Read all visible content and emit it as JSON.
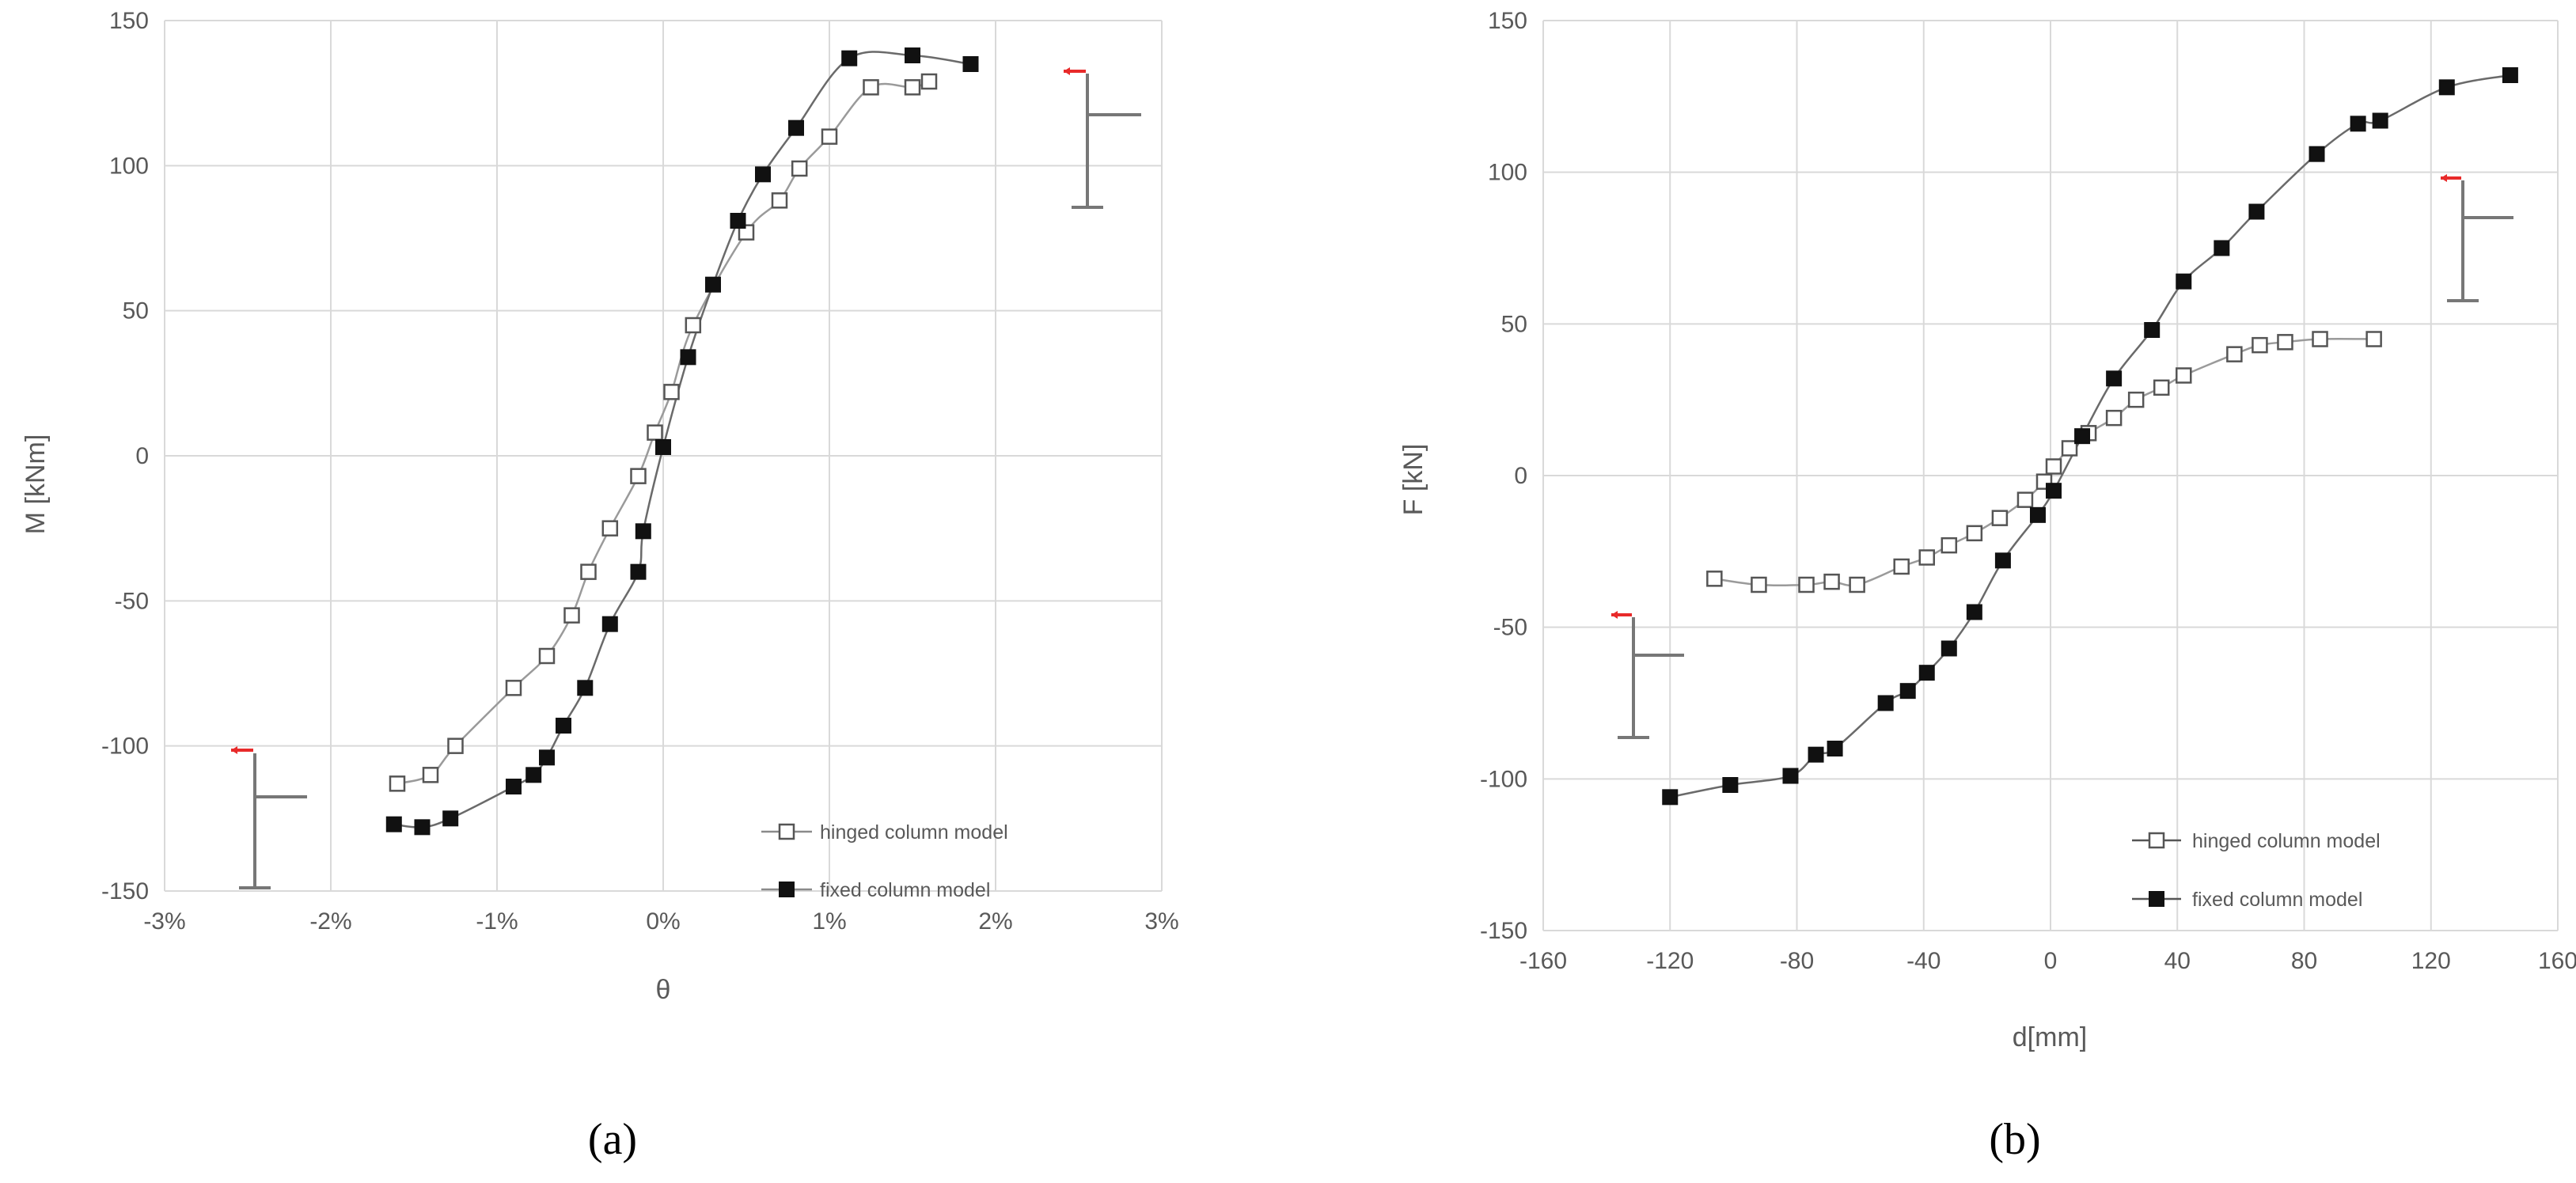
{
  "chart_data": [
    {
      "type": "scatter",
      "panel_label": "(a)",
      "xlabel": "θ",
      "ylabel": "M [kNm]",
      "xlim": [
        -3,
        3
      ],
      "ylim": [
        -150,
        150
      ],
      "x_unit": "%",
      "x_ticks": [
        "-3%",
        "-2%",
        "-1%",
        "0%",
        "1%",
        "2%",
        "3%"
      ],
      "y_ticks": [
        "-150",
        "-100",
        "-50",
        "0",
        "50",
        "100",
        "150"
      ],
      "grid": true,
      "legend_position": "bottom-right",
      "series": [
        {
          "name": "hinged column model",
          "marker": "open-square",
          "points": [
            [
              -1.6,
              -113
            ],
            [
              -1.4,
              -110
            ],
            [
              -1.25,
              -100
            ],
            [
              -0.9,
              -80
            ],
            [
              -0.7,
              -69
            ],
            [
              -0.55,
              -55
            ],
            [
              -0.45,
              -40
            ],
            [
              -0.32,
              -25
            ],
            [
              -0.15,
              -7
            ],
            [
              -0.05,
              8
            ],
            [
              0.05,
              22
            ],
            [
              0.18,
              45
            ],
            [
              0.5,
              77
            ],
            [
              0.7,
              88
            ],
            [
              0.82,
              99
            ],
            [
              1.0,
              110
            ],
            [
              1.25,
              127
            ],
            [
              1.5,
              127
            ],
            [
              1.6,
              129
            ]
          ]
        },
        {
          "name": "fixed column model",
          "marker": "filled-square",
          "points": [
            [
              -1.62,
              -127
            ],
            [
              -1.45,
              -128
            ],
            [
              -1.28,
              -125
            ],
            [
              -0.9,
              -114
            ],
            [
              -0.78,
              -110
            ],
            [
              -0.7,
              -104
            ],
            [
              -0.6,
              -93
            ],
            [
              -0.47,
              -80
            ],
            [
              -0.32,
              -58
            ],
            [
              -0.15,
              -40
            ],
            [
              -0.12,
              -26
            ],
            [
              0.0,
              3
            ],
            [
              0.15,
              34
            ],
            [
              0.3,
              59
            ],
            [
              0.45,
              81
            ],
            [
              0.6,
              97
            ],
            [
              0.8,
              113
            ],
            [
              1.12,
              137
            ],
            [
              1.5,
              138
            ],
            [
              1.85,
              135
            ]
          ]
        }
      ]
    },
    {
      "type": "scatter",
      "panel_label": "(b)",
      "xlabel": "d[mm]",
      "ylabel": "F [kN]",
      "xlim": [
        -160,
        160
      ],
      "ylim": [
        -150,
        150
      ],
      "x_ticks": [
        "-160",
        "-120",
        "-80",
        "-40",
        "0",
        "40",
        "80",
        "120",
        "160"
      ],
      "y_ticks": [
        "-150",
        "-100",
        "-50",
        "0",
        "50",
        "100",
        "150"
      ],
      "grid": true,
      "legend_position": "bottom-right",
      "series": [
        {
          "name": "hinged column model",
          "marker": "open-square",
          "points": [
            [
              -106,
              -34
            ],
            [
              -92,
              -36
            ],
            [
              -77,
              -36
            ],
            [
              -69,
              -35
            ],
            [
              -61,
              -36
            ],
            [
              -47,
              -30
            ],
            [
              -39,
              -27
            ],
            [
              -32,
              -23
            ],
            [
              -24,
              -19
            ],
            [
              -16,
              -14
            ],
            [
              -8,
              -8
            ],
            [
              -2,
              -2
            ],
            [
              1,
              3
            ],
            [
              6,
              9
            ],
            [
              12,
              14
            ],
            [
              20,
              19
            ],
            [
              27,
              25
            ],
            [
              35,
              29
            ],
            [
              42,
              33
            ],
            [
              58,
              40
            ],
            [
              66,
              43
            ],
            [
              74,
              44
            ],
            [
              85,
              45
            ],
            [
              102,
              45
            ]
          ]
        },
        {
          "name": "fixed column model",
          "marker": "filled-square",
          "points": [
            [
              -120,
              -106
            ],
            [
              -101,
              -102
            ],
            [
              -82,
              -99
            ],
            [
              -74,
              -92
            ],
            [
              -68,
              -90
            ],
            [
              -52,
              -75
            ],
            [
              -45,
              -71
            ],
            [
              -39,
              -65
            ],
            [
              -32,
              -57
            ],
            [
              -24,
              -45
            ],
            [
              -15,
              -28
            ],
            [
              -4,
              -13
            ],
            [
              1,
              -5
            ],
            [
              10,
              13
            ],
            [
              20,
              32
            ],
            [
              32,
              48
            ],
            [
              42,
              64
            ],
            [
              54,
              75
            ],
            [
              65,
              87
            ],
            [
              84,
              106
            ],
            [
              97,
              116
            ],
            [
              104,
              117
            ],
            [
              125,
              128
            ],
            [
              145,
              132
            ]
          ]
        }
      ]
    }
  ]
}
